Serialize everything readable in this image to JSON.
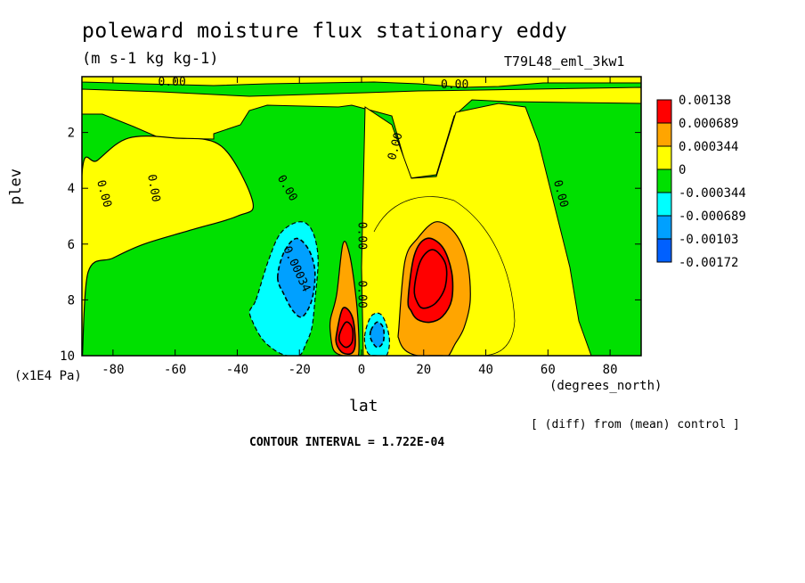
{
  "chart_data": {
    "type": "heatmap",
    "title": "poleward moisture flux stationary eddy",
    "units": "(m s-1 kg kg-1)",
    "run_label": "T79L48_eml_3kw1",
    "xlabel": "lat",
    "xunits": "(degrees_north)",
    "ylabel": "plev",
    "yunits": "(x1E4 Pa)",
    "footer_note": "[ (diff) from (mean) control ]",
    "contour_interval": "CONTOUR INTERVAL = 1.722E-04",
    "xlim": [
      -90,
      90
    ],
    "ylim": [
      10,
      0
    ],
    "x_ticks": [
      -80,
      -60,
      -40,
      -20,
      0,
      20,
      40,
      60,
      80
    ],
    "x_tick_labels": [
      "-80",
      "-60",
      "-40",
      "-20",
      "0",
      "20",
      "40",
      "60",
      "80"
    ],
    "y_ticks": [
      2,
      4,
      6,
      8,
      10
    ],
    "y_tick_labels": [
      "2",
      "4",
      "6",
      "8",
      "10"
    ],
    "colorbar": {
      "levels": [
        "0.00138",
        "0.000689",
        "0.000344",
        "0",
        "-0.000344",
        "-0.000689",
        "-0.00103",
        "-0.00172"
      ],
      "colors": [
        "#ff0000",
        "#ffa500",
        "#ffff00",
        "#00e000",
        "#00ffff",
        "#00a0ff",
        "#0060ff"
      ]
    },
    "contour_labels": [
      {
        "text": "0.00",
        "lat": -61,
        "plev": 0.2,
        "rot": 0
      },
      {
        "text": "0.00",
        "lat": 30,
        "plev": 0.3,
        "rot": 0
      },
      {
        "text": "0.00",
        "lat": -83,
        "plev": 4.2,
        "rot": 75
      },
      {
        "text": "0.00",
        "lat": -67,
        "plev": 4.0,
        "rot": 80
      },
      {
        "text": "0.00",
        "lat": -24,
        "plev": 4.0,
        "rot": 60
      },
      {
        "text": "0.00",
        "lat": 11,
        "plev": 2.5,
        "rot": -75
      },
      {
        "text": "0.00",
        "lat": 64,
        "plev": 4.2,
        "rot": 75
      },
      {
        "text": "0.00",
        "lat": 0,
        "plev": 5.7,
        "rot": 90
      },
      {
        "text": "0.00",
        "lat": 0,
        "plev": 7.8,
        "rot": 90
      },
      {
        "text": "0.00034",
        "lat": -21,
        "plev": 6.9,
        "rot": 65
      }
    ],
    "regions": [
      {
        "level": 0,
        "lat": [
          -90,
          -88,
          -80,
          -70,
          -55,
          -40,
          -35,
          -45,
          -60,
          -75,
          -85,
          -90
        ],
        "plev": [
          10,
          7,
          6.5,
          6,
          5.5,
          5,
          4.5,
          2.5,
          2.2,
          2.2,
          3,
          3.5
        ]
      },
      {
        "level": -1,
        "lat": [
          -34,
          -30,
          -26,
          -20,
          -16,
          -14,
          -15,
          -16,
          -18,
          -20,
          -24,
          -28,
          -32,
          -35,
          -36
        ],
        "plev": [
          8,
          6.6,
          5.6,
          5.2,
          5.5,
          6.5,
          8,
          9,
          9.6,
          10,
          10,
          9.8,
          9.4,
          8.8,
          8.4
        ]
      },
      {
        "level": -2,
        "lat": [
          -27,
          -25,
          -21,
          -17,
          -15,
          -16,
          -19,
          -22,
          -25
        ],
        "plev": [
          7.2,
          6.3,
          5.8,
          6.2,
          7,
          8,
          8.6,
          8.4,
          7.8
        ]
      },
      {
        "level": 1,
        "lat": [
          -10,
          -8,
          -6,
          -4,
          -2,
          -1,
          -1,
          -3,
          -6,
          -9,
          -10
        ],
        "plev": [
          8.7,
          7.8,
          6,
          6.3,
          7.7,
          9,
          10,
          10,
          10,
          9.8,
          9.2
        ]
      },
      {
        "level": 2,
        "lat": [
          -8,
          -6,
          -3,
          -2,
          -3,
          -6,
          -8
        ],
        "plev": [
          9.2,
          8.3,
          8.6,
          9.5,
          9.9,
          9.9,
          9.6
        ]
      },
      {
        "level": 3,
        "lat": [
          -7,
          -5,
          -3,
          -3,
          -5,
          -7
        ],
        "plev": [
          9.2,
          8.8,
          9,
          9.5,
          9.7,
          9.5
        ]
      },
      {
        "level": -1,
        "lat": [
          1,
          3,
          6,
          8,
          9,
          8,
          5,
          2
        ],
        "plev": [
          9.3,
          8.6,
          8.5,
          8.9,
          9.5,
          10,
          10,
          9.9
        ]
      },
      {
        "level": -2,
        "lat": [
          3,
          5,
          7,
          7,
          5,
          3
        ],
        "plev": [
          9.1,
          8.8,
          9,
          9.5,
          9.7,
          9.4
        ]
      },
      {
        "level": 1,
        "lat": [
          12,
          14,
          18,
          24,
          30,
          34,
          35,
          33,
          30,
          28,
          26,
          22,
          18,
          14,
          12
        ],
        "plev": [
          9,
          6.6,
          5.8,
          5.2,
          5.6,
          6.6,
          8,
          9,
          9.6,
          10,
          10,
          10,
          10,
          9.8,
          9.4
        ]
      },
      {
        "level": 2,
        "lat": [
          15,
          17,
          21,
          26,
          29,
          29,
          26,
          22,
          18,
          16
        ],
        "plev": [
          8,
          6.4,
          5.8,
          6.1,
          7,
          8,
          8.6,
          8.8,
          8.7,
          8.4
        ]
      },
      {
        "level": 3,
        "lat": [
          17,
          19,
          23,
          27,
          27,
          24,
          20,
          18
        ],
        "plev": [
          7.6,
          6.6,
          6.2,
          6.7,
          7.5,
          8.1,
          8.3,
          8.1
        ]
      }
    ]
  }
}
